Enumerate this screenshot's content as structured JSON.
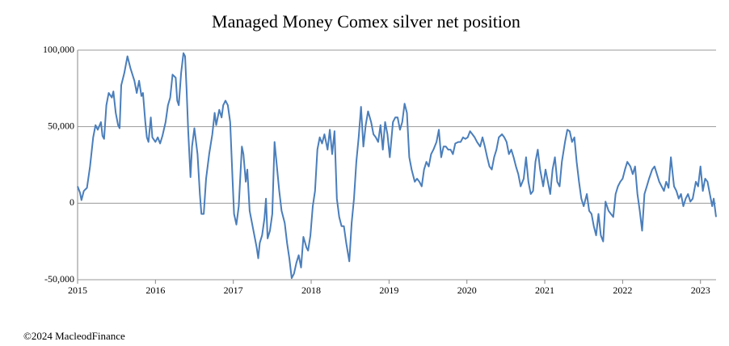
{
  "chart_data": {
    "type": "line",
    "title": "Managed Money Comex silver net position",
    "footer": "©2024 MacleodFinance",
    "color": "#4a7ebb",
    "grid": true,
    "xlim": [
      2015,
      2023.2
    ],
    "xticks": [
      2015,
      2016,
      2017,
      2018,
      2019,
      2020,
      2021,
      2022,
      2023
    ],
    "ylim": [
      -50000,
      100000
    ],
    "yticks": [
      {
        "value": 100000,
        "label": "100,000"
      },
      {
        "value": 50000,
        "label": "50,000"
      },
      0,
      {
        "value": -50000,
        "label": "-50,000"
      }
    ],
    "x": [
      2015.0,
      2015.03,
      2015.05,
      2015.08,
      2015.12,
      2015.16,
      2015.2,
      2015.23,
      2015.26,
      2015.3,
      2015.32,
      2015.34,
      2015.37,
      2015.4,
      2015.44,
      2015.46,
      2015.49,
      2015.52,
      2015.54,
      2015.56,
      2015.6,
      2015.64,
      2015.68,
      2015.73,
      2015.76,
      2015.79,
      2015.82,
      2015.84,
      2015.87,
      2015.89,
      2015.91,
      2015.94,
      2015.96,
      2016.0,
      2016.03,
      2016.06,
      2016.09,
      2016.13,
      2016.16,
      2016.19,
      2016.22,
      2016.26,
      2016.28,
      2016.3,
      2016.33,
      2016.36,
      2016.38,
      2016.4,
      2016.42,
      2016.45,
      2016.47,
      2016.5,
      2016.54,
      2016.57,
      2016.59,
      2016.62,
      2016.65,
      2016.69,
      2016.73,
      2016.76,
      2016.78,
      2016.82,
      2016.85,
      2016.87,
      2016.9,
      2016.93,
      2016.96,
      2016.99,
      2017.01,
      2017.04,
      2017.07,
      2017.11,
      2017.13,
      2017.16,
      2017.18,
      2017.21,
      2017.24,
      2017.27,
      2017.3,
      2017.32,
      2017.34,
      2017.37,
      2017.4,
      2017.42,
      2017.44,
      2017.47,
      2017.5,
      2017.53,
      2017.56,
      2017.59,
      2017.62,
      2017.66,
      2017.69,
      2017.72,
      2017.75,
      2017.78,
      2017.81,
      2017.84,
      2017.87,
      2017.9,
      2017.94,
      2017.96,
      2017.99,
      2018.02,
      2018.05,
      2018.08,
      2018.11,
      2018.14,
      2018.17,
      2018.21,
      2018.24,
      2018.27,
      2018.3,
      2018.33,
      2018.36,
      2018.39,
      2018.42,
      2018.45,
      2018.49,
      2018.52,
      2018.55,
      2018.58,
      2018.61,
      2018.64,
      2018.67,
      2018.7,
      2018.73,
      2018.77,
      2018.8,
      2018.83,
      2018.86,
      2018.89,
      2018.92,
      2018.95,
      2018.98,
      2019.01,
      2019.05,
      2019.08,
      2019.11,
      2019.14,
      2019.17,
      2019.2,
      2019.23,
      2019.26,
      2019.29,
      2019.33,
      2019.36,
      2019.39,
      2019.42,
      2019.45,
      2019.48,
      2019.51,
      2019.54,
      2019.57,
      2019.61,
      2019.64,
      2019.67,
      2019.7,
      2019.73,
      2019.76,
      2019.79,
      2019.82,
      2019.85,
      2019.89,
      2019.92,
      2019.95,
      2019.98,
      2020.01,
      2020.04,
      2020.07,
      2020.1,
      2020.13,
      2020.17,
      2020.2,
      2020.23,
      2020.26,
      2020.29,
      2020.32,
      2020.35,
      2020.38,
      2020.41,
      2020.45,
      2020.48,
      2020.51,
      2020.54,
      2020.57,
      2020.6,
      2020.63,
      2020.66,
      2020.69,
      2020.73,
      2020.76,
      2020.79,
      2020.82,
      2020.85,
      2020.88,
      2020.91,
      2020.94,
      2020.98,
      2021.01,
      2021.04,
      2021.07,
      2021.1,
      2021.13,
      2021.16,
      2021.19,
      2021.22,
      2021.26,
      2021.29,
      2021.32,
      2021.35,
      2021.38,
      2021.41,
      2021.44,
      2021.47,
      2021.5,
      2021.54,
      2021.57,
      2021.6,
      2021.63,
      2021.66,
      2021.69,
      2021.72,
      2021.75,
      2021.78,
      2021.82,
      2021.85,
      2021.88,
      2021.91,
      2021.94,
      2021.97,
      2022.0,
      2022.03,
      2022.06,
      2022.1,
      2022.13,
      2022.16,
      2022.19,
      2022.22,
      2022.25,
      2022.28,
      2022.31,
      2022.34,
      2022.38,
      2022.41,
      2022.44,
      2022.47,
      2022.5,
      2022.53,
      2022.56,
      2022.59,
      2022.62,
      2022.66,
      2022.69,
      2022.72,
      2022.75,
      2022.78,
      2022.81,
      2022.84,
      2022.87,
      2022.9,
      2022.94,
      2022.97,
      2023.0,
      2023.03,
      2023.06,
      2023.09,
      2023.12,
      2023.15,
      2023.17,
      2023.2
    ],
    "values": [
      11000,
      7000,
      2000,
      8000,
      10000,
      24000,
      43000,
      51000,
      48000,
      53000,
      44000,
      42000,
      64000,
      72000,
      69000,
      73000,
      59000,
      51000,
      49000,
      77000,
      85000,
      96000,
      88000,
      80000,
      72000,
      80000,
      70000,
      72000,
      53000,
      43000,
      40000,
      56000,
      43000,
      40000,
      43000,
      39000,
      44000,
      53000,
      64000,
      69000,
      84000,
      82000,
      67000,
      64000,
      85000,
      98000,
      96000,
      74000,
      48000,
      17000,
      37000,
      49000,
      32000,
      6000,
      -7000,
      -7000,
      16000,
      32000,
      45000,
      59000,
      51000,
      61000,
      56000,
      64000,
      67000,
      64000,
      53000,
      16000,
      -7000,
      -14000,
      -2000,
      37000,
      32000,
      14000,
      22000,
      -5000,
      -13000,
      -21000,
      -29000,
      -36000,
      -26000,
      -21000,
      -10000,
      3000,
      -23000,
      -18000,
      -7000,
      40000,
      24000,
      8000,
      -5000,
      -13000,
      -26000,
      -36000,
      -49000,
      -46000,
      -39000,
      -34000,
      -42000,
      -22000,
      -29000,
      -31000,
      -21000,
      -2000,
      8000,
      35000,
      43000,
      39000,
      45000,
      35000,
      48000,
      32000,
      47000,
      3000,
      -9000,
      -15000,
      -15000,
      -26000,
      -38000,
      -13000,
      3000,
      27000,
      43000,
      63000,
      37000,
      51000,
      60000,
      53000,
      45000,
      43000,
      40000,
      51000,
      35000,
      53000,
      45000,
      30000,
      53000,
      56000,
      56000,
      48000,
      53000,
      65000,
      59000,
      30000,
      22000,
      14000,
      16000,
      14000,
      11000,
      22000,
      27000,
      24000,
      32000,
      35000,
      40000,
      48000,
      30000,
      37000,
      37000,
      35000,
      35000,
      32000,
      39000,
      40000,
      40000,
      43000,
      42000,
      43000,
      47000,
      45000,
      43000,
      40000,
      37000,
      43000,
      37000,
      30000,
      24000,
      22000,
      30000,
      35000,
      43000,
      45000,
      43000,
      40000,
      32000,
      35000,
      30000,
      24000,
      19000,
      11000,
      16000,
      30000,
      14000,
      6000,
      8000,
      27000,
      35000,
      22000,
      11000,
      22000,
      14000,
      6000,
      22000,
      30000,
      14000,
      11000,
      27000,
      40000,
      48000,
      47000,
      40000,
      43000,
      27000,
      14000,
      3000,
      -2000,
      6000,
      -5000,
      -7000,
      -15000,
      -21000,
      -7000,
      -21000,
      -25000,
      1000,
      -5000,
      -7000,
      -9000,
      6000,
      11000,
      14000,
      16000,
      22000,
      27000,
      24000,
      19000,
      24000,
      6000,
      -5000,
      -18000,
      6000,
      11000,
      16000,
      22000,
      24000,
      19000,
      14000,
      11000,
      8000,
      14000,
      10000,
      30000,
      11000,
      8000,
      3000,
      6000,
      -2000,
      3000,
      6000,
      1000,
      3000,
      14000,
      11000,
      24000,
      8000,
      16000,
      14000,
      6000,
      -2000,
      3000,
      -9000
    ]
  }
}
